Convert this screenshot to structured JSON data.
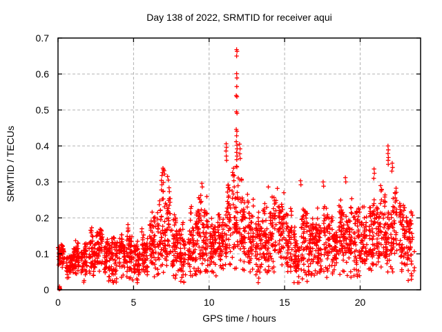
{
  "colors": {
    "background": "#ffffff",
    "axis": "#000000",
    "grid": "#b0b0b0",
    "marker": "#ff0000",
    "text": "#000000"
  },
  "chart_data": {
    "type": "scatter",
    "title": "Day 138 of 2022, SRMTID for receiver aqui",
    "xlabel": "GPS time / hours",
    "ylabel": "SRMTID / TECUs",
    "xlim": [
      0,
      24
    ],
    "ylim": [
      0,
      0.7
    ],
    "grid": true,
    "legend": "none",
    "marker": "plus",
    "x_ticks": [
      {
        "v": 0,
        "label": "0"
      },
      {
        "v": 5,
        "label": "5"
      },
      {
        "v": 10,
        "label": "10"
      },
      {
        "v": 15,
        "label": "15"
      },
      {
        "v": 20,
        "label": "20"
      }
    ],
    "y_ticks": [
      {
        "v": 0.0,
        "label": "0"
      },
      {
        "v": 0.1,
        "label": "0.1"
      },
      {
        "v": 0.2,
        "label": "0.2"
      },
      {
        "v": 0.3,
        "label": "0.3"
      },
      {
        "v": 0.4,
        "label": "0.4"
      },
      {
        "v": 0.5,
        "label": "0.5"
      },
      {
        "v": 0.6,
        "label": "0.6"
      },
      {
        "v": 0.7,
        "label": "0.7"
      }
    ],
    "seed": 20220138,
    "points_per_band": 54,
    "max_hour": 23.6,
    "density_bands": [
      [
        0.0,
        0.07,
        0.14
      ],
      [
        0.5,
        0.05,
        0.13
      ],
      [
        1.0,
        0.06,
        0.17
      ],
      [
        1.5,
        0.04,
        0.14
      ],
      [
        2.0,
        0.06,
        0.19
      ],
      [
        2.5,
        0.07,
        0.2
      ],
      [
        3.0,
        0.05,
        0.19
      ],
      [
        3.5,
        0.04,
        0.16
      ],
      [
        4.0,
        0.06,
        0.19
      ],
      [
        4.5,
        0.06,
        0.21
      ],
      [
        5.0,
        0.04,
        0.16
      ],
      [
        5.5,
        0.06,
        0.18
      ],
      [
        6.0,
        0.07,
        0.25
      ],
      [
        6.5,
        0.09,
        0.31
      ],
      [
        7.0,
        0.1,
        0.33
      ],
      [
        7.5,
        0.07,
        0.26
      ],
      [
        8.0,
        0.05,
        0.21
      ],
      [
        8.5,
        0.07,
        0.24
      ],
      [
        9.0,
        0.08,
        0.28
      ],
      [
        9.5,
        0.08,
        0.29
      ],
      [
        10.0,
        0.07,
        0.23
      ],
      [
        10.5,
        0.08,
        0.25
      ],
      [
        11.0,
        0.1,
        0.31
      ],
      [
        11.5,
        0.11,
        0.36
      ],
      [
        12.0,
        0.09,
        0.35
      ],
      [
        12.5,
        0.07,
        0.29
      ],
      [
        13.0,
        0.05,
        0.25
      ],
      [
        13.5,
        0.08,
        0.28
      ],
      [
        14.0,
        0.09,
        0.28
      ],
      [
        14.5,
        0.1,
        0.28
      ],
      [
        15.0,
        0.08,
        0.25
      ],
      [
        15.5,
        0.05,
        0.22
      ],
      [
        16.0,
        0.07,
        0.29
      ],
      [
        16.5,
        0.07,
        0.22
      ],
      [
        17.0,
        0.08,
        0.26
      ],
      [
        17.5,
        0.08,
        0.29
      ],
      [
        18.0,
        0.07,
        0.22
      ],
      [
        18.5,
        0.08,
        0.27
      ],
      [
        19.0,
        0.08,
        0.3
      ],
      [
        19.5,
        0.07,
        0.24
      ],
      [
        20.0,
        0.07,
        0.26
      ],
      [
        20.5,
        0.09,
        0.3
      ],
      [
        21.0,
        0.1,
        0.32
      ],
      [
        21.5,
        0.09,
        0.28
      ],
      [
        22.0,
        0.1,
        0.33
      ],
      [
        22.5,
        0.09,
        0.3
      ],
      [
        23.0,
        0.06,
        0.24
      ],
      [
        23.5,
        0.05,
        0.18
      ]
    ],
    "feature_points": [
      [
        11.82,
        0.668
      ],
      [
        11.85,
        0.663
      ],
      [
        11.82,
        0.65
      ],
      [
        11.82,
        0.601
      ],
      [
        11.84,
        0.589
      ],
      [
        11.83,
        0.565
      ],
      [
        11.8,
        0.54
      ],
      [
        11.84,
        0.537
      ],
      [
        11.81,
        0.495
      ],
      [
        11.85,
        0.491
      ],
      [
        11.8,
        0.446
      ],
      [
        11.84,
        0.441
      ],
      [
        11.82,
        0.428
      ],
      [
        11.8,
        0.412
      ],
      [
        11.84,
        0.402
      ],
      [
        11.86,
        0.392
      ],
      [
        11.82,
        0.382
      ],
      [
        11.85,
        0.372
      ],
      [
        11.83,
        0.362
      ],
      [
        11.13,
        0.406
      ],
      [
        11.15,
        0.396
      ],
      [
        11.12,
        0.386
      ],
      [
        11.14,
        0.372
      ],
      [
        11.16,
        0.36
      ],
      [
        12.02,
        0.405
      ],
      [
        12.05,
        0.392
      ],
      [
        12.03,
        0.378
      ],
      [
        12.06,
        0.365
      ],
      [
        6.95,
        0.338
      ],
      [
        6.98,
        0.334
      ],
      [
        7.02,
        0.331
      ],
      [
        6.92,
        0.326
      ],
      [
        7.05,
        0.322
      ],
      [
        6.88,
        0.318
      ],
      [
        7.25,
        0.315
      ],
      [
        7.3,
        0.305
      ],
      [
        21.84,
        0.4
      ],
      [
        21.86,
        0.389
      ],
      [
        21.84,
        0.379
      ],
      [
        21.87,
        0.368
      ],
      [
        21.85,
        0.36
      ],
      [
        21.86,
        0.349
      ],
      [
        22.12,
        0.352
      ],
      [
        22.15,
        0.34
      ],
      [
        22.1,
        0.33
      ],
      [
        20.92,
        0.336
      ],
      [
        20.94,
        0.324
      ],
      [
        20.9,
        0.31
      ],
      [
        19.02,
        0.312
      ],
      [
        19.05,
        0.3
      ],
      [
        16.05,
        0.303
      ],
      [
        16.08,
        0.292
      ],
      [
        17.55,
        0.3
      ],
      [
        17.58,
        0.288
      ],
      [
        9.52,
        0.296
      ],
      [
        9.55,
        0.286
      ],
      [
        13.92,
        0.286
      ],
      [
        14.52,
        0.282
      ],
      [
        14.95,
        0.27
      ]
    ],
    "origin_cluster": [
      [
        0.08,
        0.002
      ],
      [
        0.1,
        0.006
      ],
      [
        0.13,
        0.003
      ],
      [
        0.1,
        0.009
      ]
    ],
    "origin_square": [
      0.1,
      0.004
    ]
  }
}
